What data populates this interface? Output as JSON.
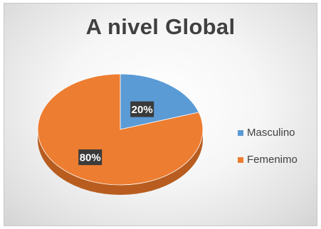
{
  "chart_data": {
    "type": "pie",
    "title": "A nivel Global",
    "categories": [
      "Masculino",
      "Femenimo"
    ],
    "values": [
      20,
      80
    ],
    "labels": [
      "20%",
      "80%"
    ],
    "colors": [
      "#5b9bd5",
      "#ed7d31"
    ],
    "shadow_colors": [
      "#3a6fa0",
      "#b85d1f"
    ],
    "legend_position": "right",
    "style": "3d"
  }
}
